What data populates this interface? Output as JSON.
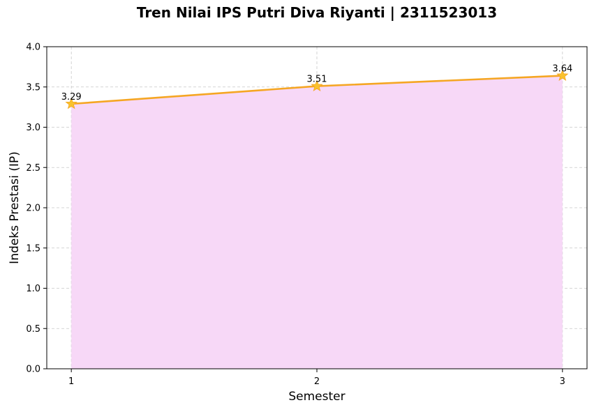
{
  "chart_data": {
    "type": "area",
    "title": "Tren Nilai IPS Putri Diva Riyanti | 2311523013",
    "xlabel": "Semester",
    "ylabel": "Indeks Prestasi (IP)",
    "x": [
      1,
      2,
      3
    ],
    "x_tick_labels": [
      "1",
      "2",
      "3"
    ],
    "y_ticks": [
      0.0,
      0.5,
      1.0,
      1.5,
      2.0,
      2.5,
      3.0,
      3.5,
      4.0
    ],
    "y_tick_labels": [
      "0.0",
      "0.5",
      "1.0",
      "1.5",
      "2.0",
      "2.5",
      "3.0",
      "3.5",
      "4.0"
    ],
    "ylim": [
      0,
      4.0
    ],
    "xlim": [
      0.9,
      3.1
    ],
    "series": [
      {
        "values": [
          3.29,
          3.51,
          3.64
        ],
        "data_labels": [
          "3.29",
          "3.51",
          "3.64"
        ]
      }
    ],
    "grid": true,
    "marker": "star",
    "colors": {
      "line": "#f5a623",
      "marker": "#f9c22e",
      "fill": "#f7d8f7",
      "grid": "#c8c8c8"
    }
  }
}
